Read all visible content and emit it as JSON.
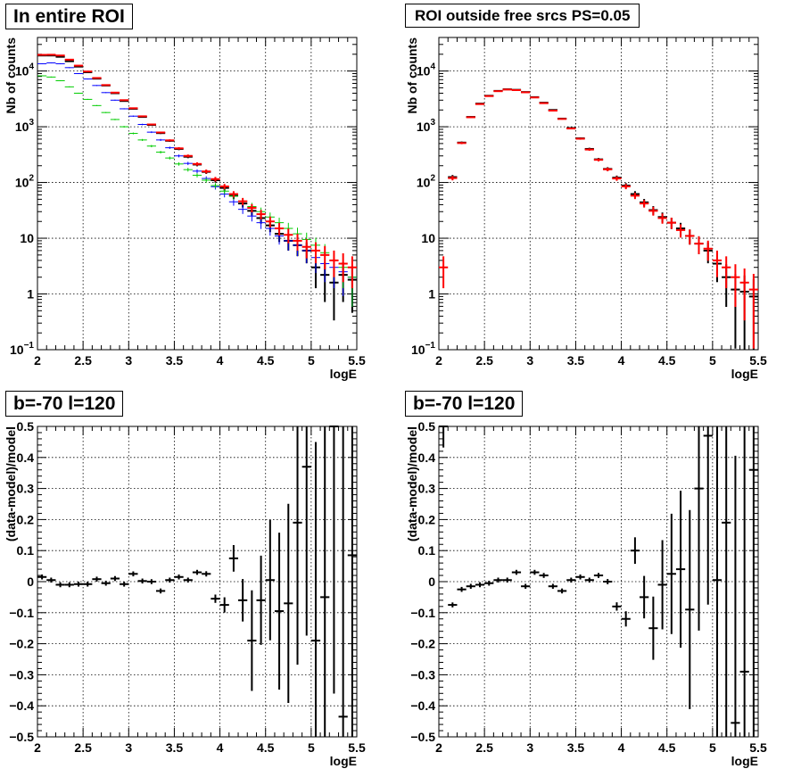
{
  "chart_data": [
    {
      "type": "scatter",
      "title": "In entire ROI",
      "xlabel": "logE",
      "ylabel": "Nb of counts",
      "xlim": [
        2,
        5.5
      ],
      "ylim": [
        0.1,
        40000
      ],
      "y_scale": "log",
      "grid": true,
      "x_ticks": [
        "2",
        "2.5",
        "3",
        "3.5",
        "4",
        "4.5",
        "5",
        "5.5"
      ],
      "y_ticks": [
        {
          "value": 0.1,
          "base": "10",
          "exp": "−1"
        },
        {
          "value": 1,
          "base": "1",
          "exp": ""
        },
        {
          "value": 10,
          "base": "10",
          "exp": ""
        },
        {
          "value": 100,
          "base": "10",
          "exp": "2"
        },
        {
          "value": 1000,
          "base": "10",
          "exp": "3"
        },
        {
          "value": 10000,
          "base": "10",
          "exp": "4"
        }
      ],
      "x": [
        2.05,
        2.15,
        2.25,
        2.35,
        2.45,
        2.55,
        2.65,
        2.75,
        2.85,
        2.95,
        3.05,
        3.15,
        3.25,
        3.35,
        3.45,
        3.55,
        3.65,
        3.75,
        3.85,
        3.95,
        4.05,
        4.15,
        4.25,
        4.35,
        4.45,
        4.55,
        4.65,
        4.75,
        4.85,
        4.95,
        5.05,
        5.15,
        5.25,
        5.35,
        5.45
      ],
      "series": [
        {
          "color": "#000000",
          "values": [
            19000,
            19000,
            18000,
            15000,
            12000,
            9500,
            7300,
            5500,
            4000,
            2900,
            2100,
            1500,
            1080,
            770,
            560,
            400,
            290,
            210,
            155,
            110,
            80,
            58,
            42,
            31,
            23,
            17,
            12,
            9,
            7.5,
            6,
            3,
            2.2,
            1.6,
            2.2,
            1.8
          ]
        },
        {
          "color": "#0000ff",
          "values": [
            13500,
            14000,
            13500,
            11500,
            9000,
            7200,
            5500,
            4100,
            3000,
            2100,
            1550,
            1100,
            800,
            580,
            420,
            300,
            220,
            160,
            118,
            84,
            62,
            45,
            33,
            25,
            19,
            15,
            11,
            9,
            7.5,
            6,
            4.5,
            3.5,
            3,
            2.5,
            2
          ]
        },
        {
          "color": "#00cc00",
          "values": [
            8200,
            7800,
            6700,
            5200,
            4000,
            3100,
            2400,
            1800,
            1350,
            1000,
            760,
            580,
            450,
            350,
            275,
            215,
            170,
            135,
            110,
            88,
            70,
            57,
            46,
            37,
            30,
            24,
            19,
            15,
            12,
            9.5,
            7.5,
            5.5,
            4,
            3,
            2
          ]
        },
        {
          "color": "#ff0000",
          "values": [
            19500,
            19600,
            19000,
            16000,
            12500,
            9800,
            7500,
            5600,
            4100,
            3000,
            2150,
            1540,
            1100,
            790,
            570,
            410,
            300,
            215,
            158,
            115,
            85,
            62,
            46,
            35,
            27,
            20,
            15,
            11.5,
            9,
            7,
            6,
            5,
            4,
            3.5,
            3
          ]
        }
      ]
    },
    {
      "type": "scatter",
      "title": "ROI outside free srcs PS=0.05",
      "xlabel": "logE",
      "ylabel": "Nb of counts",
      "xlim": [
        2,
        5.5
      ],
      "ylim": [
        0.1,
        40000
      ],
      "y_scale": "log",
      "grid": true,
      "x_ticks": [
        "2",
        "2.5",
        "3",
        "3.5",
        "4",
        "4.5",
        "5",
        "5.5"
      ],
      "y_ticks": [
        {
          "value": 0.1,
          "base": "10",
          "exp": "−1"
        },
        {
          "value": 1,
          "base": "1",
          "exp": ""
        },
        {
          "value": 10,
          "base": "10",
          "exp": ""
        },
        {
          "value": 100,
          "base": "10",
          "exp": "2"
        },
        {
          "value": 1000,
          "base": "10",
          "exp": "3"
        },
        {
          "value": 10000,
          "base": "10",
          "exp": "4"
        }
      ],
      "x": [
        2.05,
        2.15,
        2.25,
        2.35,
        2.45,
        2.55,
        2.65,
        2.75,
        2.85,
        2.95,
        3.05,
        3.15,
        3.25,
        3.35,
        3.45,
        3.55,
        3.65,
        3.75,
        3.85,
        3.95,
        4.05,
        4.15,
        4.25,
        4.35,
        4.45,
        4.55,
        4.65,
        4.75,
        4.85,
        4.95,
        5.05,
        5.15,
        5.25,
        5.35,
        5.45
      ],
      "series": [
        {
          "color": "#000000",
          "values": [
            0,
            125,
            520,
            1500,
            2600,
            3600,
            4400,
            4700,
            4600,
            4200,
            3400,
            2700,
            2000,
            1400,
            950,
            620,
            400,
            260,
            175,
            122,
            88,
            62,
            44,
            32,
            24,
            19,
            15,
            11,
            8,
            6,
            3.5,
            2,
            1.2,
            1.1,
            0.9
          ]
        },
        {
          "color": "#ff0000",
          "values": [
            3,
            120,
            510,
            1480,
            2550,
            3550,
            4350,
            4650,
            4550,
            4150,
            3350,
            2650,
            1950,
            1380,
            930,
            610,
            390,
            255,
            172,
            118,
            85,
            58,
            42,
            31,
            23,
            19,
            14,
            11,
            8,
            6.5,
            4,
            3,
            2,
            1.6,
            1.2
          ]
        }
      ]
    },
    {
      "type": "scatter",
      "title": "b=-70 l=120",
      "xlabel": "logE",
      "ylabel": "(data-model)/model",
      "xlim": [
        2,
        5.5
      ],
      "ylim": [
        -0.5,
        0.5
      ],
      "grid": true,
      "x_ticks": [
        "2",
        "2.5",
        "3",
        "3.5",
        "4",
        "4.5",
        "5",
        "5.5"
      ],
      "y_ticks": [
        "−0.5",
        "−0.4",
        "−0.3",
        "−0.2",
        "−0.1",
        "0",
        "0.1",
        "0.2",
        "0.3",
        "0.4",
        "0.5"
      ],
      "x": [
        2.05,
        2.15,
        2.25,
        2.35,
        2.45,
        2.55,
        2.65,
        2.75,
        2.85,
        2.95,
        3.05,
        3.15,
        3.25,
        3.35,
        3.45,
        3.55,
        3.65,
        3.75,
        3.85,
        3.95,
        4.05,
        4.15,
        4.25,
        4.35,
        4.45,
        4.55,
        4.65,
        4.75,
        4.85,
        4.95,
        5.05,
        5.15,
        5.25,
        5.35,
        5.45
      ],
      "series": [
        {
          "color": "#000000",
          "values": [
            0.015,
            0.005,
            -0.01,
            -0.01,
            -0.008,
            -0.008,
            0.008,
            -0.005,
            0.01,
            -0.008,
            0.025,
            0.002,
            0,
            -0.03,
            0.005,
            0.015,
            0.005,
            0.03,
            0.025,
            -0.055,
            -0.075,
            0.075,
            -0.06,
            -0.19,
            -0.06,
            0.005,
            -0.095,
            -0.07,
            0.19,
            0.37,
            -0.19,
            -0.05,
            0.5,
            -0.435,
            0.085
          ]
        }
      ]
    },
    {
      "type": "scatter",
      "title": "b=-70 l=120",
      "xlabel": "logE",
      "ylabel": "(data-model)/model",
      "xlim": [
        2,
        5.5
      ],
      "ylim": [
        -0.5,
        0.5
      ],
      "grid": true,
      "x_ticks": [
        "2",
        "2.5",
        "3",
        "3.5",
        "4",
        "4.5",
        "5",
        "5.5"
      ],
      "y_ticks": [
        "−0.5",
        "−0.4",
        "−0.3",
        "−0.2",
        "−0.1",
        "0",
        "0.1",
        "0.2",
        "0.3",
        "0.4",
        "0.5"
      ],
      "x": [
        2.05,
        2.15,
        2.25,
        2.35,
        2.45,
        2.55,
        2.65,
        2.75,
        2.85,
        2.95,
        3.05,
        3.15,
        3.25,
        3.35,
        3.45,
        3.55,
        3.65,
        3.75,
        3.85,
        3.95,
        4.05,
        4.15,
        4.25,
        4.35,
        4.45,
        4.55,
        4.65,
        4.75,
        4.85,
        4.95,
        5.05,
        5.15,
        5.25,
        5.35,
        5.45
      ],
      "series": [
        {
          "color": "#000000",
          "values": [
            0.5,
            -0.075,
            -0.025,
            -0.015,
            -0.01,
            -0.005,
            0.005,
            0.005,
            0.03,
            -0.015,
            0.03,
            0.02,
            -0.015,
            -0.03,
            0.005,
            0.015,
            0.005,
            0.02,
            0,
            -0.08,
            -0.12,
            0.1,
            -0.05,
            -0.15,
            -0.01,
            0.025,
            0.04,
            -0.09,
            0.3,
            0.47,
            0.005,
            0.19,
            -0.455,
            -0.29,
            0.36
          ]
        }
      ]
    }
  ]
}
